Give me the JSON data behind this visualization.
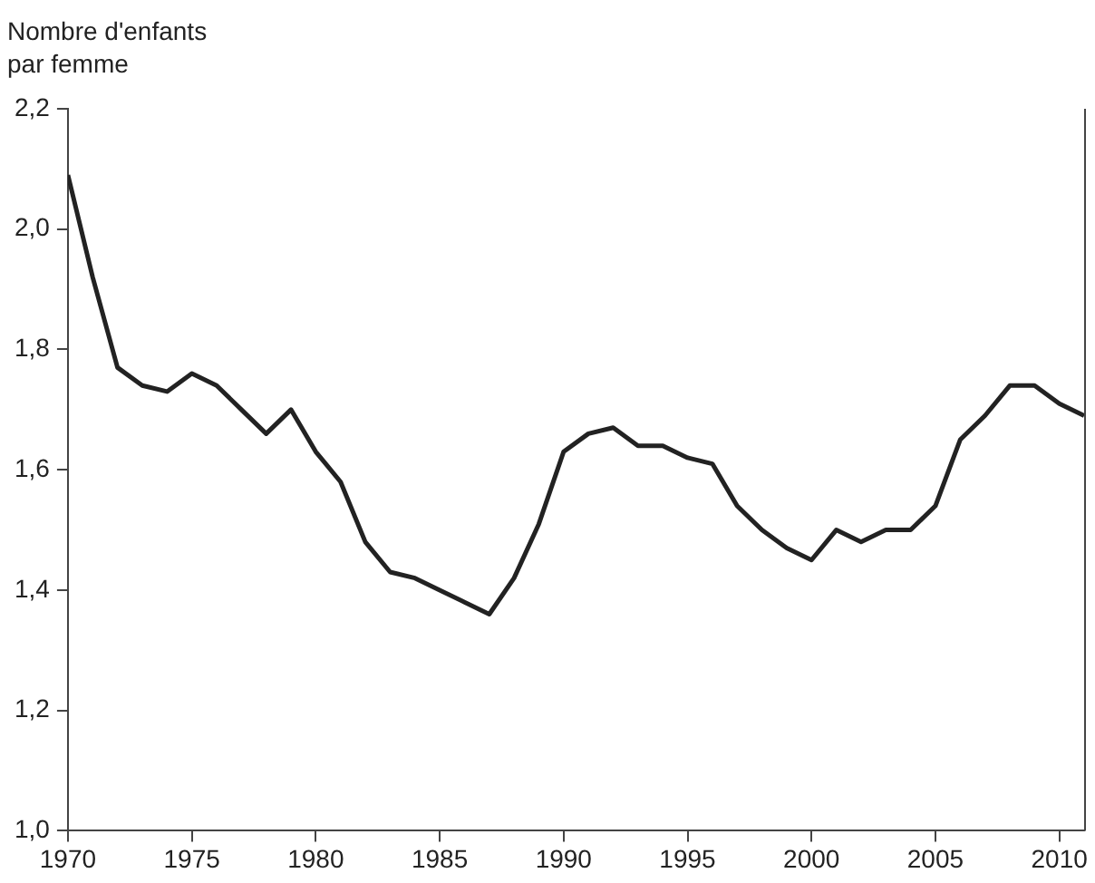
{
  "chart_data": {
    "type": "line",
    "ylabel": "Nombre d'enfants par femme",
    "x": [
      1970,
      1971,
      1972,
      1973,
      1974,
      1975,
      1976,
      1977,
      1978,
      1979,
      1980,
      1981,
      1982,
      1983,
      1984,
      1985,
      1986,
      1987,
      1988,
      1989,
      1990,
      1991,
      1992,
      1993,
      1994,
      1995,
      1996,
      1997,
      1998,
      1999,
      2000,
      2001,
      2002,
      2003,
      2004,
      2005,
      2006,
      2007,
      2008,
      2009,
      2010,
      2011
    ],
    "series": [
      {
        "color": "#222222",
        "values": [
          2.09,
          1.92,
          1.77,
          1.74,
          1.73,
          1.76,
          1.74,
          1.7,
          1.66,
          1.7,
          1.63,
          1.58,
          1.48,
          1.43,
          1.42,
          1.4,
          1.38,
          1.36,
          1.42,
          1.51,
          1.63,
          1.66,
          1.67,
          1.64,
          1.64,
          1.62,
          1.61,
          1.54,
          1.5,
          1.47,
          1.45,
          1.5,
          1.48,
          1.5,
          1.5,
          1.54,
          1.65,
          1.69,
          1.74,
          1.74,
          1.71,
          1.69
        ]
      }
    ],
    "xlim": [
      1970,
      2011
    ],
    "xticks": [
      1970,
      1975,
      1980,
      1985,
      1990,
      1995,
      2000,
      2005,
      2010
    ],
    "ylim": [
      1.0,
      2.2
    ],
    "yticks": [
      {
        "value": 1.0,
        "label": "1,0"
      },
      {
        "value": 1.2,
        "label": "1,2"
      },
      {
        "value": 1.4,
        "label": "1,4"
      },
      {
        "value": 1.6,
        "label": "1,6"
      },
      {
        "value": 1.8,
        "label": "1,8"
      },
      {
        "value": 2.0,
        "label": "2,0"
      },
      {
        "value": 2.2,
        "label": "2,2"
      }
    ],
    "grid": false,
    "legend": false,
    "marker": "none",
    "line_style": "solid"
  }
}
